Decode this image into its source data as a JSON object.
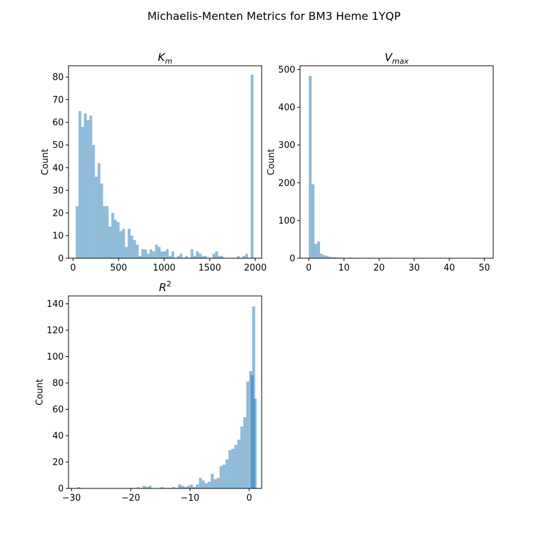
{
  "figure": {
    "title": "Michaelis-Menten Metrics for BM3 Heme 1YQP"
  },
  "colors": {
    "bar": "#1f77b4",
    "bar_opacity": 0.5,
    "axis": "#000000",
    "background": "#ffffff"
  },
  "chart_data": [
    {
      "id": "km",
      "type": "bar",
      "title_main": "K",
      "title_sub": "m",
      "title_sup": "",
      "ylabel": "Count",
      "xlabel": "",
      "xlim": [
        -50,
        2070
      ],
      "ylim": [
        0,
        85
      ],
      "xticks": [
        0,
        500,
        1000,
        1500,
        2000
      ],
      "xtick_labels": [
        "0",
        "500",
        "1000",
        "1500",
        "2000"
      ],
      "yticks": [
        0,
        10,
        20,
        30,
        40,
        50,
        60,
        70,
        80
      ],
      "ytick_labels": [
        "0",
        "10",
        "20",
        "30",
        "40",
        "50",
        "60",
        "70",
        "80"
      ],
      "grid": false,
      "bins": [
        [
          30,
          23
        ],
        [
          60,
          65
        ],
        [
          90,
          58
        ],
        [
          120,
          64
        ],
        [
          150,
          61
        ],
        [
          180,
          63
        ],
        [
          210,
          50
        ],
        [
          240,
          36
        ],
        [
          270,
          42
        ],
        [
          300,
          33
        ],
        [
          330,
          23
        ],
        [
          360,
          23
        ],
        [
          390,
          14
        ],
        [
          420,
          20
        ],
        [
          450,
          17
        ],
        [
          480,
          16
        ],
        [
          510,
          12
        ],
        [
          540,
          13
        ],
        [
          570,
          5
        ],
        [
          600,
          13
        ],
        [
          630,
          10
        ],
        [
          660,
          8
        ],
        [
          690,
          6
        ],
        [
          720,
          1
        ],
        [
          750,
          4
        ],
        [
          780,
          4
        ],
        [
          810,
          2
        ],
        [
          840,
          4
        ],
        [
          870,
          3
        ],
        [
          900,
          6
        ],
        [
          930,
          5
        ],
        [
          960,
          3
        ],
        [
          990,
          3
        ],
        [
          1020,
          4
        ],
        [
          1050,
          1
        ],
        [
          1080,
          3
        ],
        [
          1140,
          1
        ],
        [
          1170,
          2
        ],
        [
          1230,
          1
        ],
        [
          1290,
          4
        ],
        [
          1320,
          1
        ],
        [
          1350,
          3
        ],
        [
          1380,
          2
        ],
        [
          1410,
          1
        ],
        [
          1440,
          1
        ],
        [
          1530,
          2
        ],
        [
          1560,
          3
        ],
        [
          1590,
          1
        ],
        [
          1620,
          1
        ],
        [
          1800,
          1
        ],
        [
          1860,
          1
        ],
        [
          1890,
          2
        ],
        [
          1950,
          81
        ]
      ],
      "bin_width": 30
    },
    {
      "id": "vmax",
      "type": "bar",
      "title_main": "V",
      "title_sub": "max",
      "title_sup": "",
      "ylabel": "Count",
      "xlabel": "",
      "xlim": [
        -2.5,
        52.5
      ],
      "ylim": [
        0,
        510
      ],
      "xticks": [
        0,
        10,
        20,
        30,
        40,
        50
      ],
      "xtick_labels": [
        "0",
        "10",
        "20",
        "30",
        "40",
        "50"
      ],
      "yticks": [
        0,
        100,
        200,
        300,
        400,
        500
      ],
      "ytick_labels": [
        "0",
        "100",
        "200",
        "300",
        "400",
        "500"
      ],
      "grid": false,
      "bins": [
        [
          0,
          483
        ],
        [
          0.8,
          196
        ],
        [
          1.6,
          38
        ],
        [
          2.4,
          44
        ],
        [
          3.2,
          12
        ],
        [
          4.0,
          8
        ],
        [
          4.8,
          6
        ],
        [
          5.6,
          4
        ],
        [
          6.4,
          3
        ],
        [
          7.2,
          3
        ],
        [
          8.0,
          2
        ],
        [
          8.8,
          2
        ],
        [
          9.6,
          1
        ],
        [
          10.4,
          1
        ],
        [
          11.2,
          2
        ],
        [
          12.0,
          1
        ],
        [
          12.8,
          1
        ],
        [
          13.6,
          1
        ],
        [
          14.4,
          1
        ],
        [
          16.8,
          1
        ],
        [
          20.0,
          1
        ],
        [
          21.6,
          1
        ],
        [
          22.4,
          1
        ],
        [
          24.8,
          1
        ],
        [
          26.4,
          1
        ],
        [
          28.0,
          1
        ],
        [
          30.4,
          1
        ],
        [
          44.8,
          1
        ],
        [
          48.8,
          1
        ],
        [
          49.6,
          1
        ]
      ],
      "bin_width": 0.8
    },
    {
      "id": "r2",
      "type": "bar",
      "title_main": "R",
      "title_sub": "",
      "title_sup": "2",
      "ylabel": "Count",
      "xlabel": "",
      "xlim": [
        -30.5,
        2.1
      ],
      "ylim": [
        0,
        146
      ],
      "xticks": [
        -30,
        -20,
        -10,
        0
      ],
      "xtick_labels": [
        "−30",
        "−20",
        "−10",
        "0"
      ],
      "yticks": [
        0,
        20,
        40,
        60,
        80,
        100,
        120,
        140
      ],
      "ytick_labels": [
        "0",
        "20",
        "40",
        "60",
        "80",
        "100",
        "120",
        "140"
      ],
      "grid": false,
      "bins": [
        [
          -29.0,
          1
        ],
        [
          -19.0,
          1
        ],
        [
          -18.0,
          2
        ],
        [
          -17.5,
          1
        ],
        [
          -17.0,
          2
        ],
        [
          -15.0,
          1
        ],
        [
          -13.0,
          1
        ],
        [
          -12.0,
          3
        ],
        [
          -11.5,
          2
        ],
        [
          -11.0,
          1
        ],
        [
          -10.5,
          2
        ],
        [
          -10.0,
          3
        ],
        [
          -9.5,
          1
        ],
        [
          -9.0,
          3
        ],
        [
          -8.5,
          8
        ],
        [
          -8.0,
          6
        ],
        [
          -7.5,
          4
        ],
        [
          -7.0,
          5
        ],
        [
          -6.5,
          11
        ],
        [
          -6.0,
          7
        ],
        [
          -5.5,
          8
        ],
        [
          -5.0,
          17
        ],
        [
          -4.5,
          18
        ],
        [
          -4.0,
          22
        ],
        [
          -3.5,
          29
        ],
        [
          -3.0,
          30
        ],
        [
          -2.5,
          33
        ],
        [
          -2.0,
          37
        ],
        [
          -1.5,
          47
        ],
        [
          -1.0,
          54
        ],
        [
          -0.5,
          81
        ],
        [
          0.0,
          89
        ],
        [
          0.25,
          86
        ],
        [
          0.5,
          138
        ],
        [
          0.75,
          68
        ]
      ],
      "bin_width": 0.5
    }
  ]
}
